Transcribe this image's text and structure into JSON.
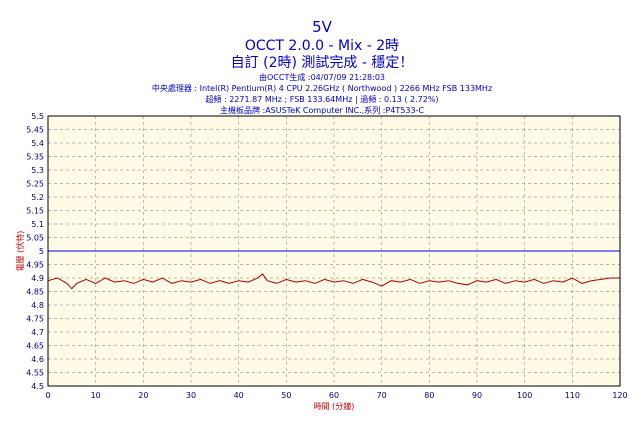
{
  "chart_data": {
    "type": "line",
    "title": "5V",
    "subtitle": "OCCT 2.0.0 - Mix - 2時",
    "status": "自訂 (2時) 測試完成 - 穩定！",
    "info_lines": [
      "由OCCT生成 :04/07/09 21:28:03",
      "中央處理器 : Intel(R) Pentium(R) 4 CPU 2.26GHz ( Northwood ) 2266 MHz FSB 133MHz",
      "超頻 : 2271.87 MHz ; FSB 133.64MHz | 過頻 : 0.13 ( 2.72%)",
      "主機板品牌 :ASUSTeK Computer INC.,系列 :P4T533-C"
    ],
    "xlabel": "時間 (分鐘)",
    "ylabel": "電壓 (伏特)",
    "xlim": [
      0,
      120
    ],
    "ylim": [
      4.5,
      5.5
    ],
    "x_ticks": [
      0,
      10,
      20,
      30,
      40,
      50,
      60,
      70,
      80,
      90,
      100,
      110,
      120
    ],
    "y_ticks": [
      4.5,
      4.55,
      4.6,
      4.65,
      4.7,
      4.75,
      4.8,
      4.85,
      4.9,
      4.95,
      5,
      5.05,
      5.1,
      5.15,
      5.2,
      5.25,
      5.3,
      5.35,
      5.4,
      5.45,
      5.5
    ],
    "grid": true,
    "series": [
      {
        "color": "#aa0000",
        "x": [
          0,
          2,
          4,
          5,
          6,
          8,
          10,
          12,
          14,
          16,
          18,
          20,
          22,
          24,
          26,
          28,
          30,
          32,
          34,
          36,
          38,
          40,
          42,
          44,
          45,
          46,
          48,
          50,
          52,
          54,
          56,
          58,
          60,
          62,
          64,
          66,
          68,
          70,
          72,
          74,
          76,
          78,
          80,
          82,
          84,
          86,
          88,
          90,
          92,
          94,
          96,
          98,
          100,
          102,
          104,
          106,
          108,
          110,
          112,
          114,
          116,
          118,
          120
        ],
        "y": [
          4.89,
          4.9,
          4.88,
          4.86,
          4.88,
          4.895,
          4.88,
          4.9,
          4.885,
          4.89,
          4.88,
          4.895,
          4.885,
          4.9,
          4.88,
          4.89,
          4.885,
          4.895,
          4.88,
          4.89,
          4.88,
          4.89,
          4.885,
          4.9,
          4.915,
          4.89,
          4.88,
          4.895,
          4.885,
          4.89,
          4.88,
          4.895,
          4.885,
          4.89,
          4.88,
          4.895,
          4.885,
          4.87,
          4.89,
          4.885,
          4.895,
          4.88,
          4.89,
          4.885,
          4.89,
          4.88,
          4.875,
          4.89,
          4.885,
          4.895,
          4.88,
          4.89,
          4.885,
          4.895,
          4.88,
          4.89,
          4.885,
          4.9,
          4.88,
          4.89,
          4.895,
          4.9,
          4.9
        ]
      },
      {
        "color": "#0000ff",
        "x": [
          0,
          120
        ],
        "y": [
          5,
          5
        ]
      }
    ]
  }
}
